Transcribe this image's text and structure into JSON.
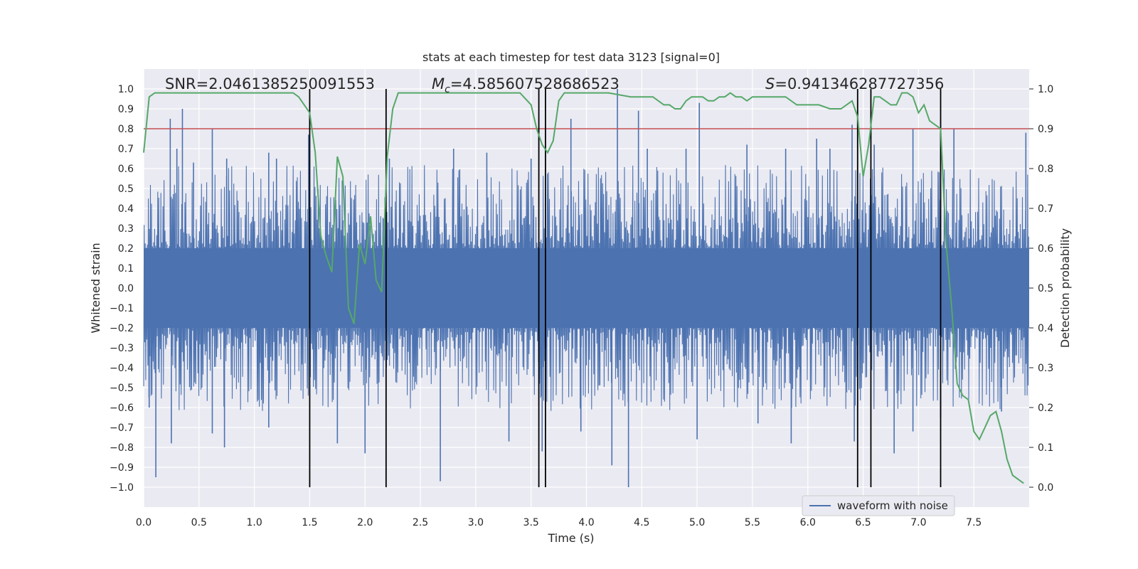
{
  "chart_data": {
    "type": "line",
    "title": "stats at each timestep for test data 3123 [signal=0]",
    "xlabel": "Time (s)",
    "ylabel_left": "Whitened strain",
    "ylabel_right": "Detection probability",
    "xlim": [
      0.0,
      8.0
    ],
    "ylim_left": [
      -1.1,
      1.1
    ],
    "ylim_right": [
      -0.05,
      1.05
    ],
    "x_ticks": [
      "0.0",
      "0.5",
      "1.0",
      "1.5",
      "2.0",
      "2.5",
      "3.0",
      "3.5",
      "4.0",
      "4.5",
      "5.0",
      "5.5",
      "6.0",
      "6.5",
      "7.0",
      "7.5"
    ],
    "y_ticks_left": [
      "1.0",
      "0.9",
      "0.8",
      "0.7",
      "0.6",
      "0.5",
      "0.4",
      "0.3",
      "0.2",
      "0.1",
      "0.0",
      "−0.1",
      "−0.2",
      "−0.3",
      "−0.4",
      "−0.5",
      "−0.6",
      "−0.7",
      "−0.8",
      "−0.9",
      "−1.0"
    ],
    "y_ticks_right": [
      "1.0",
      "0.9",
      "0.8",
      "0.7",
      "0.6",
      "0.5",
      "0.4",
      "0.3",
      "0.2",
      "0.1",
      "0.0"
    ],
    "grid": true,
    "legend": {
      "entries": [
        "waveform with noise"
      ],
      "placement": "lower-right"
    },
    "annotations": {
      "snr_label": "SNR=2.0461385250091553",
      "mc_prefix": "M",
      "mc_sub": "c",
      "mc_value": "=4.585607528686523",
      "s_prefix": "S",
      "s_value": "=0.941346287727356"
    },
    "threshold_left": 0.8,
    "vertical_lines": [
      1.5,
      2.19,
      3.57,
      3.63,
      6.45,
      6.57,
      7.2
    ],
    "waveform": {
      "name": "waveform with noise",
      "color": "#4c72b0",
      "description_range": [
        -1.0,
        1.0
      ]
    },
    "peaks_up": [
      [
        0.24,
        0.85
      ],
      [
        0.35,
        0.9
      ],
      [
        0.3,
        0.7
      ],
      [
        0.62,
        0.8
      ],
      [
        0.75,
        0.65
      ],
      [
        1.13,
        0.68
      ],
      [
        1.49,
        0.77
      ],
      [
        2.22,
        0.65
      ],
      [
        3.5,
        0.65
      ],
      [
        3.86,
        0.85
      ],
      [
        4.28,
        1.0
      ],
      [
        4.47,
        0.89
      ],
      [
        4.55,
        0.7
      ],
      [
        5.02,
        0.93
      ],
      [
        5.45,
        0.72
      ],
      [
        6.08,
        0.75
      ],
      [
        6.4,
        0.82
      ],
      [
        6.2,
        0.7
      ],
      [
        7.32,
        0.8
      ],
      [
        7.97,
        0.78
      ],
      [
        3.1,
        0.68
      ],
      [
        2.8,
        0.7
      ],
      [
        1.2,
        0.65
      ],
      [
        0.45,
        0.63
      ],
      [
        6.95,
        0.8
      ],
      [
        6.6,
        0.72
      ],
      [
        5.8,
        0.7
      ],
      [
        4.9,
        0.7
      ]
    ],
    "peaks_down": [
      [
        0.11,
        -0.95
      ],
      [
        0.25,
        -0.78
      ],
      [
        0.73,
        -0.8
      ],
      [
        0.62,
        -0.73
      ],
      [
        1.13,
        -0.7
      ],
      [
        2.0,
        -0.83
      ],
      [
        2.68,
        -0.97
      ],
      [
        3.3,
        -0.77
      ],
      [
        3.6,
        -0.82
      ],
      [
        4.23,
        -0.89
      ],
      [
        4.38,
        -1.0
      ],
      [
        5.0,
        -0.76
      ],
      [
        5.85,
        -0.78
      ],
      [
        6.42,
        -0.77
      ],
      [
        6.78,
        -0.83
      ],
      [
        7.2,
        -0.65
      ],
      [
        7.75,
        -0.62
      ],
      [
        1.75,
        -0.78
      ],
      [
        0.05,
        -0.6
      ],
      [
        3.95,
        -0.72
      ],
      [
        5.55,
        -0.68
      ],
      [
        6.95,
        -0.72
      ]
    ],
    "probability_series": {
      "name": "detection probability",
      "color": "#55a868",
      "x": [
        0.0,
        0.05,
        0.1,
        0.15,
        0.2,
        0.3,
        0.4,
        0.5,
        0.6,
        0.7,
        0.8,
        0.9,
        1.0,
        1.05,
        1.1,
        1.2,
        1.3,
        1.35,
        1.4,
        1.45,
        1.5,
        1.55,
        1.6,
        1.65,
        1.7,
        1.75,
        1.8,
        1.85,
        1.9,
        1.95,
        2.0,
        2.05,
        2.1,
        2.15,
        2.2,
        2.25,
        2.3,
        2.4,
        2.5,
        2.6,
        2.8,
        3.0,
        3.2,
        3.4,
        3.5,
        3.55,
        3.6,
        3.65,
        3.7,
        3.75,
        3.8,
        3.9,
        4.0,
        4.2,
        4.4,
        4.5,
        4.6,
        4.7,
        4.75,
        4.8,
        4.85,
        4.9,
        4.95,
        5.0,
        5.05,
        5.1,
        5.15,
        5.2,
        5.25,
        5.3,
        5.35,
        5.4,
        5.45,
        5.5,
        5.55,
        5.6,
        5.7,
        5.8,
        5.9,
        6.0,
        6.1,
        6.2,
        6.3,
        6.35,
        6.4,
        6.45,
        6.5,
        6.55,
        6.6,
        6.65,
        6.7,
        6.75,
        6.8,
        6.85,
        6.9,
        6.95,
        7.0,
        7.05,
        7.1,
        7.15,
        7.2,
        7.25,
        7.3,
        7.35,
        7.4,
        7.45,
        7.5,
        7.55,
        7.6,
        7.65,
        7.7,
        7.75,
        7.8,
        7.85,
        7.9,
        7.95
      ],
      "y": [
        0.84,
        0.98,
        0.99,
        0.99,
        0.99,
        0.99,
        0.99,
        0.99,
        0.99,
        0.99,
        0.99,
        0.99,
        0.99,
        0.99,
        0.99,
        0.99,
        0.99,
        0.99,
        0.98,
        0.96,
        0.94,
        0.84,
        0.63,
        0.58,
        0.54,
        0.83,
        0.78,
        0.45,
        0.41,
        0.61,
        0.56,
        0.68,
        0.52,
        0.49,
        0.83,
        0.95,
        0.99,
        0.99,
        0.99,
        0.99,
        0.99,
        0.99,
        0.99,
        0.99,
        0.96,
        0.9,
        0.86,
        0.84,
        0.87,
        0.97,
        0.99,
        0.99,
        0.99,
        0.99,
        0.98,
        0.98,
        0.98,
        0.96,
        0.96,
        0.95,
        0.95,
        0.97,
        0.98,
        0.98,
        0.98,
        0.97,
        0.97,
        0.98,
        0.98,
        0.99,
        0.98,
        0.98,
        0.97,
        0.98,
        0.98,
        0.98,
        0.98,
        0.98,
        0.96,
        0.96,
        0.96,
        0.95,
        0.95,
        0.96,
        0.97,
        0.93,
        0.78,
        0.86,
        0.98,
        0.98,
        0.97,
        0.96,
        0.96,
        0.99,
        0.99,
        0.98,
        0.94,
        0.96,
        0.92,
        0.91,
        0.9,
        0.61,
        0.45,
        0.26,
        0.23,
        0.22,
        0.14,
        0.12,
        0.15,
        0.18,
        0.19,
        0.14,
        0.07,
        0.03,
        0.02,
        0.01
      ]
    }
  }
}
